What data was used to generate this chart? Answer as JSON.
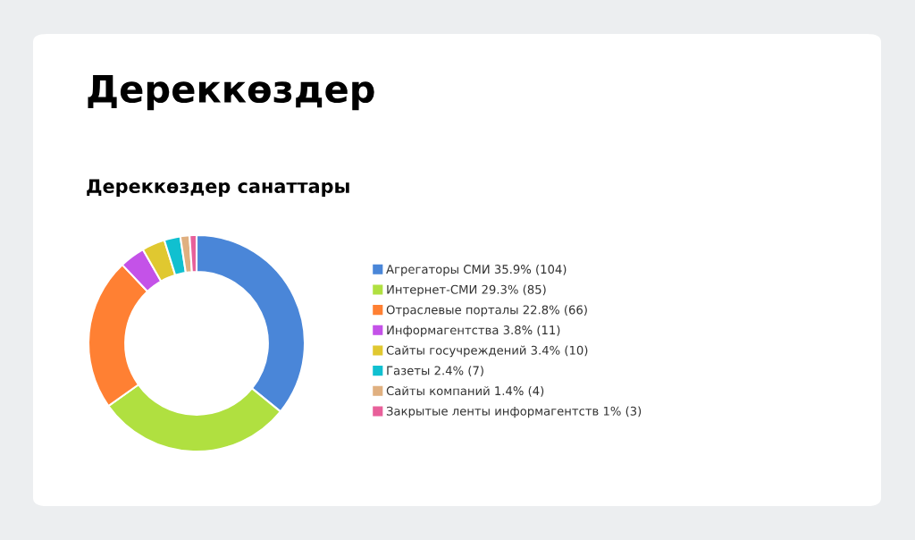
{
  "chart_data": {
    "type": "donut",
    "title": "Дереккөздер",
    "subtitle": "Дереккөздер санаттары",
    "categories": [
      "Агрегаторы СМИ",
      "Интернет-СМИ",
      "Отраслевые порталы",
      "Информагентства",
      "Сайты госучреждений",
      "Газеты",
      "Сайты компаний",
      "Закрытые ленты информагентств"
    ],
    "values": [
      104,
      85,
      66,
      11,
      10,
      7,
      4,
      3
    ],
    "value_labels": [
      "35.9% (104)",
      "29.3% (85)",
      "22.8% (66)",
      "3.8% (11)",
      "3.4% (10)",
      "2.4% (7)",
      "1.4% (4)",
      "1% (3)"
    ],
    "colors": [
      "#4a86d8",
      "#b0e040",
      "#ff8033",
      "#c452e8",
      "#e0c830",
      "#10c0d0",
      "#e0b080",
      "#e8609a"
    ],
    "legend": "right"
  }
}
